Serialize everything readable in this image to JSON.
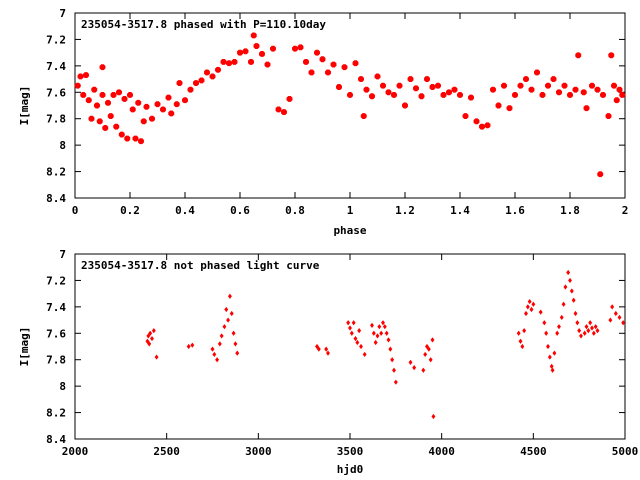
{
  "chart_data": [
    {
      "type": "scatter",
      "title": "235054-3517.8 phased with P=110.10day",
      "xlabel": "phase",
      "ylabel": "I[mag]",
      "xlim": [
        0,
        2
      ],
      "ylim": [
        8.4,
        7
      ],
      "y_inverted": true,
      "grid": false,
      "marker": "star",
      "color": "#ff0000",
      "xticks": [
        0,
        0.2,
        0.4,
        0.6,
        0.8,
        1,
        1.2,
        1.4,
        1.6,
        1.8,
        2
      ],
      "xtick_labels": [
        "0",
        "0.2",
        "0.4",
        "0.6",
        "0.8",
        "1",
        "1.2",
        "1.4",
        "1.6",
        "1.8",
        "2"
      ],
      "yticks": [
        7,
        7.2,
        7.4,
        7.6,
        7.8,
        8,
        8.2,
        8.4
      ],
      "ytick_labels": [
        "7",
        "7.2",
        "7.4",
        "7.6",
        "7.8",
        "8",
        "8.2",
        "8.4"
      ],
      "points": [
        [
          0.01,
          7.55
        ],
        [
          0.02,
          7.48
        ],
        [
          0.03,
          7.62
        ],
        [
          0.04,
          7.47
        ],
        [
          0.05,
          7.66
        ],
        [
          0.06,
          7.8
        ],
        [
          0.07,
          7.58
        ],
        [
          0.08,
          7.7
        ],
        [
          0.09,
          7.82
        ],
        [
          0.1,
          7.62
        ],
        [
          0.1,
          7.41
        ],
        [
          0.11,
          7.87
        ],
        [
          0.12,
          7.68
        ],
        [
          0.13,
          7.78
        ],
        [
          0.14,
          7.62
        ],
        [
          0.15,
          7.86
        ],
        [
          0.16,
          7.6
        ],
        [
          0.17,
          7.92
        ],
        [
          0.18,
          7.65
        ],
        [
          0.19,
          7.95
        ],
        [
          0.2,
          7.62
        ],
        [
          0.21,
          7.73
        ],
        [
          0.22,
          7.95
        ],
        [
          0.23,
          7.68
        ],
        [
          0.24,
          7.97
        ],
        [
          0.25,
          7.82
        ],
        [
          0.26,
          7.71
        ],
        [
          0.28,
          7.8
        ],
        [
          0.3,
          7.69
        ],
        [
          0.32,
          7.73
        ],
        [
          0.34,
          7.64
        ],
        [
          0.35,
          7.76
        ],
        [
          0.37,
          7.69
        ],
        [
          0.38,
          7.53
        ],
        [
          0.4,
          7.66
        ],
        [
          0.42,
          7.58
        ],
        [
          0.44,
          7.53
        ],
        [
          0.46,
          7.51
        ],
        [
          0.48,
          7.45
        ],
        [
          0.5,
          7.48
        ],
        [
          0.52,
          7.43
        ],
        [
          0.54,
          7.37
        ],
        [
          0.56,
          7.38
        ],
        [
          0.58,
          7.37
        ],
        [
          0.6,
          7.3
        ],
        [
          0.62,
          7.29
        ],
        [
          0.64,
          7.37
        ],
        [
          0.65,
          7.17
        ],
        [
          0.66,
          7.25
        ],
        [
          0.68,
          7.31
        ],
        [
          0.7,
          7.39
        ],
        [
          0.72,
          7.27
        ],
        [
          0.74,
          7.73
        ],
        [
          0.76,
          7.75
        ],
        [
          0.78,
          7.65
        ],
        [
          0.8,
          7.27
        ],
        [
          0.82,
          7.26
        ],
        [
          0.84,
          7.37
        ],
        [
          0.86,
          7.45
        ],
        [
          0.88,
          7.3
        ],
        [
          0.9,
          7.35
        ],
        [
          0.92,
          7.45
        ],
        [
          0.94,
          7.39
        ],
        [
          0.96,
          7.56
        ],
        [
          0.98,
          7.41
        ],
        [
          1.0,
          7.62
        ],
        [
          1.02,
          7.38
        ],
        [
          1.04,
          7.5
        ],
        [
          1.05,
          7.78
        ],
        [
          1.06,
          7.58
        ],
        [
          1.08,
          7.63
        ],
        [
          1.1,
          7.48
        ],
        [
          1.12,
          7.55
        ],
        [
          1.14,
          7.6
        ],
        [
          1.16,
          7.62
        ],
        [
          1.18,
          7.55
        ],
        [
          1.2,
          7.7
        ],
        [
          1.22,
          7.5
        ],
        [
          1.24,
          7.57
        ],
        [
          1.26,
          7.63
        ],
        [
          1.28,
          7.5
        ],
        [
          1.3,
          7.56
        ],
        [
          1.32,
          7.55
        ],
        [
          1.34,
          7.62
        ],
        [
          1.36,
          7.6
        ],
        [
          1.38,
          7.58
        ],
        [
          1.4,
          7.62
        ],
        [
          1.42,
          7.78
        ],
        [
          1.44,
          7.64
        ],
        [
          1.46,
          7.82
        ],
        [
          1.48,
          7.86
        ],
        [
          1.5,
          7.85
        ],
        [
          1.52,
          7.58
        ],
        [
          1.54,
          7.7
        ],
        [
          1.56,
          7.55
        ],
        [
          1.58,
          7.72
        ],
        [
          1.6,
          7.62
        ],
        [
          1.62,
          7.55
        ],
        [
          1.64,
          7.5
        ],
        [
          1.66,
          7.58
        ],
        [
          1.68,
          7.45
        ],
        [
          1.7,
          7.62
        ],
        [
          1.72,
          7.55
        ],
        [
          1.74,
          7.5
        ],
        [
          1.76,
          7.6
        ],
        [
          1.78,
          7.55
        ],
        [
          1.8,
          7.62
        ],
        [
          1.82,
          7.58
        ],
        [
          1.83,
          7.32
        ],
        [
          1.85,
          7.6
        ],
        [
          1.86,
          7.72
        ],
        [
          1.88,
          7.55
        ],
        [
          1.9,
          7.58
        ],
        [
          1.91,
          8.22
        ],
        [
          1.92,
          7.62
        ],
        [
          1.94,
          7.78
        ],
        [
          1.95,
          7.32
        ],
        [
          1.96,
          7.55
        ],
        [
          1.97,
          7.66
        ],
        [
          1.98,
          7.58
        ],
        [
          1.99,
          7.62
        ]
      ]
    },
    {
      "type": "scatter",
      "title": "235054-3517.8 not phased light curve",
      "xlabel": "hjd0",
      "ylabel": "I[mag]",
      "xlim": [
        2000,
        5000
      ],
      "ylim": [
        8.4,
        7
      ],
      "y_inverted": true,
      "grid": false,
      "marker": "diamond",
      "color": "#ff0000",
      "xticks": [
        2000,
        2500,
        3000,
        3500,
        4000,
        4500,
        5000
      ],
      "xtick_labels": [
        "2000",
        "2500",
        "3000",
        "3500",
        "4000",
        "4500",
        "5000"
      ],
      "yticks": [
        7,
        7.2,
        7.4,
        7.6,
        7.8,
        8,
        8.2,
        8.4
      ],
      "ytick_labels": [
        "7",
        "7.2",
        "7.4",
        "7.6",
        "7.8",
        "8",
        "8.2",
        "8.4"
      ],
      "points": [
        [
          2395,
          7.66
        ],
        [
          2400,
          7.62
        ],
        [
          2405,
          7.68
        ],
        [
          2410,
          7.6
        ],
        [
          2420,
          7.64
        ],
        [
          2430,
          7.58
        ],
        [
          2445,
          7.78
        ],
        [
          2620,
          7.7
        ],
        [
          2640,
          7.69
        ],
        [
          2750,
          7.72
        ],
        [
          2760,
          7.76
        ],
        [
          2775,
          7.8
        ],
        [
          2790,
          7.68
        ],
        [
          2800,
          7.62
        ],
        [
          2815,
          7.55
        ],
        [
          2825,
          7.42
        ],
        [
          2835,
          7.5
        ],
        [
          2845,
          7.32
        ],
        [
          2855,
          7.45
        ],
        [
          2865,
          7.6
        ],
        [
          2875,
          7.68
        ],
        [
          2885,
          7.75
        ],
        [
          3320,
          7.7
        ],
        [
          3330,
          7.72
        ],
        [
          3370,
          7.72
        ],
        [
          3380,
          7.75
        ],
        [
          3490,
          7.52
        ],
        [
          3500,
          7.56
        ],
        [
          3510,
          7.6
        ],
        [
          3520,
          7.52
        ],
        [
          3530,
          7.64
        ],
        [
          3540,
          7.67
        ],
        [
          3550,
          7.58
        ],
        [
          3560,
          7.7
        ],
        [
          3580,
          7.76
        ],
        [
          3620,
          7.54
        ],
        [
          3630,
          7.6
        ],
        [
          3640,
          7.67
        ],
        [
          3650,
          7.62
        ],
        [
          3660,
          7.55
        ],
        [
          3670,
          7.6
        ],
        [
          3680,
          7.52
        ],
        [
          3690,
          7.55
        ],
        [
          3700,
          7.6
        ],
        [
          3710,
          7.65
        ],
        [
          3720,
          7.72
        ],
        [
          3730,
          7.8
        ],
        [
          3740,
          7.88
        ],
        [
          3750,
          7.97
        ],
        [
          3830,
          7.82
        ],
        [
          3850,
          7.86
        ],
        [
          3900,
          7.88
        ],
        [
          3910,
          7.76
        ],
        [
          3920,
          7.7
        ],
        [
          3930,
          7.72
        ],
        [
          3940,
          7.8
        ],
        [
          3950,
          7.65
        ],
        [
          3955,
          8.23
        ],
        [
          4420,
          7.6
        ],
        [
          4430,
          7.66
        ],
        [
          4440,
          7.7
        ],
        [
          4450,
          7.58
        ],
        [
          4460,
          7.45
        ],
        [
          4470,
          7.4
        ],
        [
          4480,
          7.36
        ],
        [
          4490,
          7.42
        ],
        [
          4500,
          7.38
        ],
        [
          4540,
          7.44
        ],
        [
          4560,
          7.52
        ],
        [
          4570,
          7.6
        ],
        [
          4580,
          7.7
        ],
        [
          4590,
          7.78
        ],
        [
          4600,
          7.85
        ],
        [
          4605,
          7.88
        ],
        [
          4615,
          7.75
        ],
        [
          4630,
          7.6
        ],
        [
          4640,
          7.55
        ],
        [
          4655,
          7.48
        ],
        [
          4665,
          7.38
        ],
        [
          4675,
          7.25
        ],
        [
          4690,
          7.14
        ],
        [
          4700,
          7.2
        ],
        [
          4710,
          7.28
        ],
        [
          4720,
          7.35
        ],
        [
          4730,
          7.45
        ],
        [
          4740,
          7.52
        ],
        [
          4750,
          7.58
        ],
        [
          4760,
          7.62
        ],
        [
          4780,
          7.6
        ],
        [
          4790,
          7.55
        ],
        [
          4800,
          7.58
        ],
        [
          4810,
          7.52
        ],
        [
          4820,
          7.56
        ],
        [
          4830,
          7.6
        ],
        [
          4840,
          7.55
        ],
        [
          4850,
          7.58
        ],
        [
          4920,
          7.5
        ],
        [
          4930,
          7.4
        ],
        [
          4950,
          7.45
        ],
        [
          4970,
          7.48
        ],
        [
          4990,
          7.52
        ]
      ]
    }
  ]
}
